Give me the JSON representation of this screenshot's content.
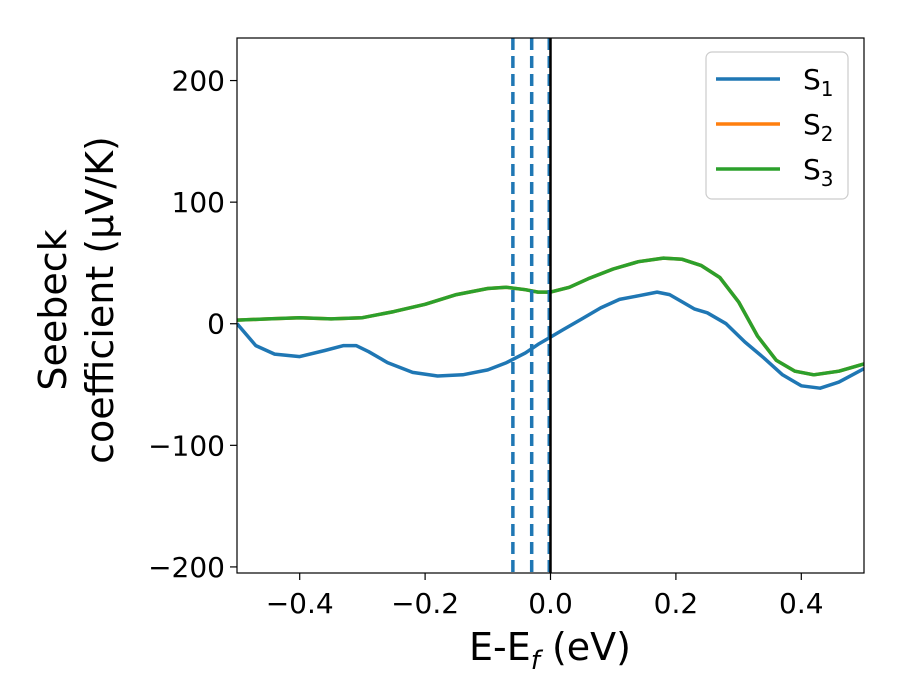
{
  "chart_data": {
    "type": "line",
    "xlabel": "E-E",
    "xlabel_sub": "f",
    "xlabel_unit": " (eV)",
    "ylabel_line1": "Seebeck",
    "ylabel_line2": "coefficient  (μV/K)",
    "xlim": [
      -0.5,
      0.5
    ],
    "ylim": [
      -205,
      235
    ],
    "xticks": [
      {
        "value": -0.4,
        "label": "−0.4"
      },
      {
        "value": -0.2,
        "label": "−0.2"
      },
      {
        "value": 0.0,
        "label": "0.0"
      },
      {
        "value": 0.2,
        "label": "0.2"
      },
      {
        "value": 0.4,
        "label": "0.4"
      }
    ],
    "yticks": [
      {
        "value": 200,
        "label": "200"
      },
      {
        "value": 100,
        "label": "100"
      },
      {
        "value": 0,
        "label": "0"
      },
      {
        "value": -100,
        "label": "−100"
      },
      {
        "value": -200,
        "label": "−200"
      }
    ],
    "legend_position": "top-right",
    "series": [
      {
        "name": "S",
        "sub": "1",
        "color": "#1f77b4",
        "x": [
          -0.5,
          -0.47,
          -0.44,
          -0.4,
          -0.36,
          -0.33,
          -0.31,
          -0.29,
          -0.26,
          -0.22,
          -0.18,
          -0.14,
          -0.1,
          -0.07,
          -0.04,
          -0.02,
          0.0,
          0.02,
          0.05,
          0.08,
          0.11,
          0.14,
          0.17,
          0.19,
          0.21,
          0.23,
          0.25,
          0.28,
          0.31,
          0.34,
          0.37,
          0.4,
          0.43,
          0.46,
          0.5
        ],
        "y": [
          0,
          -18,
          -25,
          -27,
          -22,
          -18,
          -18,
          -23,
          -32,
          -40,
          -43,
          -42,
          -38,
          -32,
          -24,
          -17,
          -11,
          -5,
          4,
          13,
          20,
          23,
          26,
          24,
          18,
          12,
          9,
          0,
          -15,
          -28,
          -42,
          -51,
          -53,
          -48,
          -37
        ]
      },
      {
        "name": "S",
        "sub": "2",
        "color": "#ff7f0e",
        "x": [
          -0.5,
          -0.45,
          -0.4,
          -0.35,
          -0.3,
          -0.25,
          -0.2,
          -0.15,
          -0.1,
          -0.07,
          -0.04,
          -0.02,
          0.0,
          0.03,
          0.06,
          0.1,
          0.14,
          0.18,
          0.21,
          0.24,
          0.27,
          0.3,
          0.33,
          0.36,
          0.39,
          0.42,
          0.46,
          0.5
        ],
        "y": [
          3,
          4,
          5,
          4,
          5,
          10,
          16,
          24,
          29,
          30,
          28,
          26,
          26,
          30,
          37,
          45,
          51,
          54,
          53,
          48,
          38,
          18,
          -10,
          -30,
          -39,
          -42,
          -39,
          -33
        ]
      },
      {
        "name": "S",
        "sub": "3",
        "color": "#2ca02c",
        "x": [
          -0.5,
          -0.45,
          -0.4,
          -0.35,
          -0.3,
          -0.25,
          -0.2,
          -0.15,
          -0.1,
          -0.07,
          -0.04,
          -0.02,
          0.0,
          0.03,
          0.06,
          0.1,
          0.14,
          0.18,
          0.21,
          0.24,
          0.27,
          0.3,
          0.33,
          0.36,
          0.39,
          0.42,
          0.46,
          0.5
        ],
        "y": [
          3,
          4,
          5,
          4,
          5,
          10,
          16,
          24,
          29,
          30,
          28,
          26,
          26,
          30,
          37,
          45,
          51,
          54,
          53,
          48,
          38,
          18,
          -10,
          -30,
          -39,
          -42,
          -39,
          -33
        ]
      }
    ],
    "vlines_dashed": {
      "color": "#1f77b4",
      "x": [
        -0.06,
        -0.03,
        -0.002
      ]
    },
    "vline_solid": {
      "color": "#000000",
      "x": 0.0
    }
  }
}
